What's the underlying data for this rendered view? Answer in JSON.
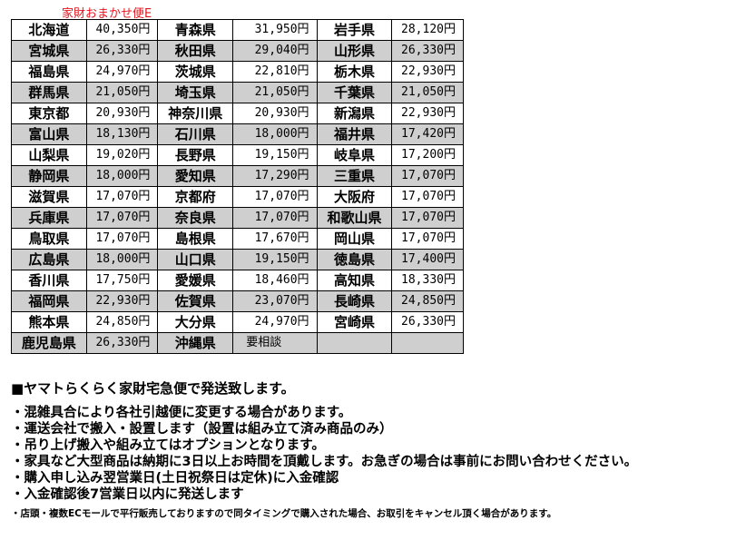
{
  "title": "家財おまかせ便E",
  "rows": [
    [
      [
        "北海道",
        "40,350円"
      ],
      [
        "青森県",
        "31,950円"
      ],
      [
        "岩手県",
        "28,120円"
      ]
    ],
    [
      [
        "宮城県",
        "26,330円"
      ],
      [
        "秋田県",
        "29,040円"
      ],
      [
        "山形県",
        "26,330円"
      ]
    ],
    [
      [
        "福島県",
        "24,970円"
      ],
      [
        "茨城県",
        "22,810円"
      ],
      [
        "栃木県",
        "22,930円"
      ]
    ],
    [
      [
        "群馬県",
        "21,050円"
      ],
      [
        "埼玉県",
        "21,050円"
      ],
      [
        "千葉県",
        "21,050円"
      ]
    ],
    [
      [
        "東京都",
        "20,930円"
      ],
      [
        "神奈川県",
        "20,930円"
      ],
      [
        "新潟県",
        "22,930円"
      ]
    ],
    [
      [
        "富山県",
        "18,130円"
      ],
      [
        "石川県",
        "18,000円"
      ],
      [
        "福井県",
        "17,420円"
      ]
    ],
    [
      [
        "山梨県",
        "19,020円"
      ],
      [
        "長野県",
        "19,150円"
      ],
      [
        "岐阜県",
        "17,200円"
      ]
    ],
    [
      [
        "静岡県",
        "18,000円"
      ],
      [
        "愛知県",
        "17,290円"
      ],
      [
        "三重県",
        "17,070円"
      ]
    ],
    [
      [
        "滋賀県",
        "17,070円"
      ],
      [
        "京都府",
        "17,070円"
      ],
      [
        "大阪府",
        "17,070円"
      ]
    ],
    [
      [
        "兵庫県",
        "17,070円"
      ],
      [
        "奈良県",
        "17,070円"
      ],
      [
        "和歌山県",
        "17,070円"
      ]
    ],
    [
      [
        "鳥取県",
        "17,070円"
      ],
      [
        "島根県",
        "17,670円"
      ],
      [
        "岡山県",
        "17,070円"
      ]
    ],
    [
      [
        "広島県",
        "18,000円"
      ],
      [
        "山口県",
        "19,150円"
      ],
      [
        "徳島県",
        "17,400円"
      ]
    ],
    [
      [
        "香川県",
        "17,750円"
      ],
      [
        "愛媛県",
        "18,460円"
      ],
      [
        "高知県",
        "18,330円"
      ]
    ],
    [
      [
        "福岡県",
        "22,930円"
      ],
      [
        "佐賀県",
        "23,070円"
      ],
      [
        "長崎県",
        "24,850円"
      ]
    ],
    [
      [
        "熊本県",
        "24,850円"
      ],
      [
        "大分県",
        "24,970円"
      ],
      [
        "宮崎県",
        "26,330円"
      ]
    ],
    [
      [
        "鹿児島県",
        "26,330円"
      ],
      [
        "沖縄県",
        "要相談"
      ],
      [
        "",
        ""
      ]
    ]
  ],
  "notes": {
    "heading": "■ヤマトらくらく家財宅急便で発送致します。",
    "bullets": [
      "・混雑具合により各社引越便に変更する場合があります。",
      "・運送会社で搬入・設置します（設置は組み立て済み商品のみ）",
      "・吊り上げ搬入や組み立てはオプションとなります。",
      "・家具など大型商品は納期に3日以上お時間を頂戴します。お急ぎの場合は事前にお問い合わせください。",
      "・購入申し込み翌営業日(土日祝祭日は定休)に入金確認",
      "・入金確認後7営業日以内に発送します"
    ],
    "footer": "・店頭・複数ECモールで平行販売しておりますので同タイミングで購入された場合、お取引をキャンセル頂く場合があります。"
  }
}
